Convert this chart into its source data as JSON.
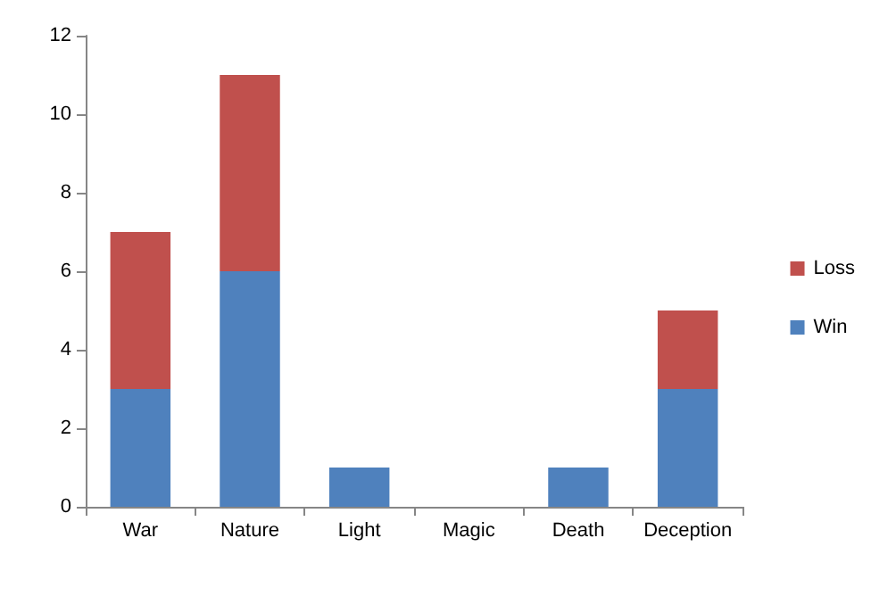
{
  "chart_data": {
    "type": "bar",
    "stacked": true,
    "categories": [
      "War",
      "Nature",
      "Light",
      "Magic",
      "Death",
      "Deception"
    ],
    "series": [
      {
        "name": "Win",
        "color": "#4f81bd",
        "values": [
          3,
          6,
          1,
          0,
          1,
          3
        ]
      },
      {
        "name": "Loss",
        "color": "#c0504d",
        "values": [
          4,
          5,
          0,
          0,
          0,
          2
        ]
      }
    ],
    "ylim": [
      0,
      12
    ],
    "yticks": [
      0,
      2,
      4,
      6,
      8,
      10,
      12
    ],
    "grid": false,
    "legend": "right"
  }
}
